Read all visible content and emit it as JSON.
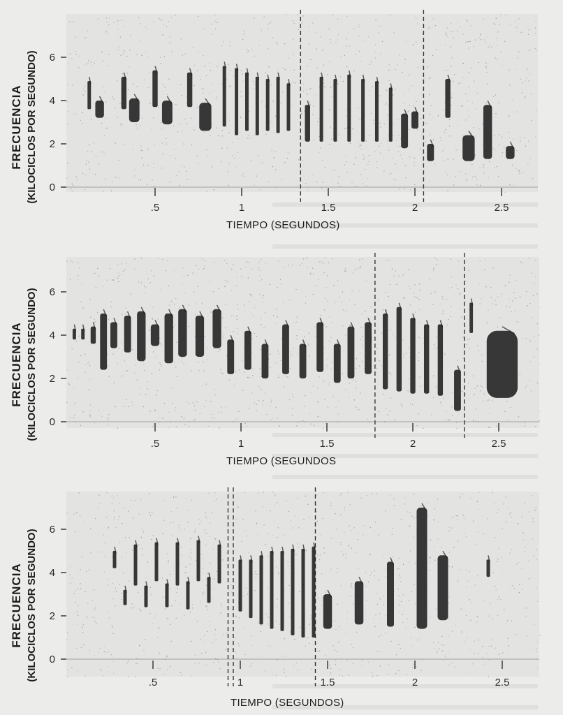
{
  "colors": {
    "ink": "#1f1f1f",
    "paper": "#ececea",
    "plot_bg": "#e3e3e1"
  },
  "chart_data": [
    {
      "type": "heatmap",
      "subtype": "sound-spectrogram",
      "title": "",
      "xlabel": "TIEMPO (SEGUNDOS)",
      "ylabel": "FRECUENCIA",
      "ylabel_units": "(KILOCICLOS POR SEGUNDO)",
      "x_ticks": [
        ".5",
        "1",
        "1.5",
        "2",
        "2.5"
      ],
      "y_ticks": [
        "0",
        "2",
        "4",
        "6"
      ],
      "xlim": [
        0.0,
        2.7
      ],
      "ylim": [
        0,
        7.5
      ],
      "dividers_x": [
        1.34,
        2.05
      ],
      "notes": [
        {
          "t": 0.12,
          "f": [
            3.6,
            4.9
          ],
          "w": 0.02
        },
        {
          "t": 0.18,
          "f": [
            3.2,
            4.0
          ],
          "w": 0.05
        },
        {
          "t": 0.32,
          "f": [
            3.6,
            5.1
          ],
          "w": 0.03
        },
        {
          "t": 0.38,
          "f": [
            3.0,
            4.1
          ],
          "w": 0.06
        },
        {
          "t": 0.5,
          "f": [
            3.7,
            5.4
          ],
          "w": 0.03
        },
        {
          "t": 0.57,
          "f": [
            2.9,
            4.0
          ],
          "w": 0.06
        },
        {
          "t": 0.7,
          "f": [
            3.7,
            5.3
          ],
          "w": 0.03
        },
        {
          "t": 0.79,
          "f": [
            2.6,
            3.9
          ],
          "w": 0.07
        },
        {
          "t": 0.9,
          "f": [
            2.8,
            5.6
          ],
          "w": 0.02
        },
        {
          "t": 0.97,
          "f": [
            2.4,
            5.5
          ],
          "w": 0.02
        },
        {
          "t": 1.03,
          "f": [
            2.6,
            5.3
          ],
          "w": 0.02
        },
        {
          "t": 1.09,
          "f": [
            2.4,
            5.1
          ],
          "w": 0.02
        },
        {
          "t": 1.15,
          "f": [
            2.6,
            5.0
          ],
          "w": 0.02
        },
        {
          "t": 1.21,
          "f": [
            2.5,
            5.1
          ],
          "w": 0.02
        },
        {
          "t": 1.27,
          "f": [
            2.6,
            4.8
          ],
          "w": 0.02
        },
        {
          "t": 1.38,
          "f": [
            2.1,
            3.8
          ],
          "w": 0.03
        },
        {
          "t": 1.46,
          "f": [
            2.1,
            5.1
          ],
          "w": 0.02
        },
        {
          "t": 1.54,
          "f": [
            2.1,
            5.0
          ],
          "w": 0.02
        },
        {
          "t": 1.62,
          "f": [
            2.1,
            5.2
          ],
          "w": 0.02
        },
        {
          "t": 1.7,
          "f": [
            2.1,
            5.0
          ],
          "w": 0.02
        },
        {
          "t": 1.78,
          "f": [
            2.1,
            4.9
          ],
          "w": 0.02
        },
        {
          "t": 1.86,
          "f": [
            2.1,
            4.6
          ],
          "w": 0.02
        },
        {
          "t": 1.94,
          "f": [
            1.8,
            3.4
          ],
          "w": 0.04
        },
        {
          "t": 2.0,
          "f": [
            2.7,
            3.5
          ],
          "w": 0.04
        },
        {
          "t": 2.09,
          "f": [
            1.2,
            2.0
          ],
          "w": 0.04
        },
        {
          "t": 2.19,
          "f": [
            3.2,
            5.0
          ],
          "w": 0.03
        },
        {
          "t": 2.31,
          "f": [
            1.2,
            2.4
          ],
          "w": 0.07
        },
        {
          "t": 2.42,
          "f": [
            1.3,
            3.8
          ],
          "w": 0.05
        },
        {
          "t": 2.55,
          "f": [
            1.3,
            1.9
          ],
          "w": 0.05
        }
      ]
    },
    {
      "type": "heatmap",
      "subtype": "sound-spectrogram",
      "title": "",
      "xlabel": "TIEMPO (SEGUNDOS",
      "ylabel": "FRECUENCIA",
      "ylabel_units": "(KILOCICLOS POR SEGUNDO)",
      "x_ticks": [
        ".5",
        "1",
        "1.5",
        "2",
        "2.5"
      ],
      "y_ticks": [
        "0",
        "2",
        "4",
        "6"
      ],
      "xlim": [
        0.0,
        2.7
      ],
      "ylim": [
        0,
        7.5
      ],
      "dividers_x": [
        1.78,
        2.3
      ],
      "notes": [
        {
          "t": 0.03,
          "f": [
            3.8,
            4.3
          ],
          "w": 0.02
        },
        {
          "t": 0.08,
          "f": [
            3.8,
            4.3
          ],
          "w": 0.02
        },
        {
          "t": 0.14,
          "f": [
            3.6,
            4.4
          ],
          "w": 0.03
        },
        {
          "t": 0.2,
          "f": [
            2.4,
            5.0
          ],
          "w": 0.04
        },
        {
          "t": 0.26,
          "f": [
            3.4,
            4.6
          ],
          "w": 0.04
        },
        {
          "t": 0.34,
          "f": [
            3.2,
            4.9
          ],
          "w": 0.04
        },
        {
          "t": 0.42,
          "f": [
            2.8,
            5.1
          ],
          "w": 0.05
        },
        {
          "t": 0.5,
          "f": [
            3.5,
            4.5
          ],
          "w": 0.05
        },
        {
          "t": 0.58,
          "f": [
            2.7,
            5.0
          ],
          "w": 0.05
        },
        {
          "t": 0.66,
          "f": [
            3.0,
            5.2
          ],
          "w": 0.05
        },
        {
          "t": 0.76,
          "f": [
            3.0,
            4.9
          ],
          "w": 0.05
        },
        {
          "t": 0.86,
          "f": [
            3.4,
            5.2
          ],
          "w": 0.05
        },
        {
          "t": 0.94,
          "f": [
            2.2,
            3.8
          ],
          "w": 0.04
        },
        {
          "t": 1.04,
          "f": [
            2.4,
            4.2
          ],
          "w": 0.04
        },
        {
          "t": 1.14,
          "f": [
            2.0,
            3.6
          ],
          "w": 0.04
        },
        {
          "t": 1.26,
          "f": [
            2.2,
            4.5
          ],
          "w": 0.04
        },
        {
          "t": 1.36,
          "f": [
            2.0,
            3.6
          ],
          "w": 0.04
        },
        {
          "t": 1.46,
          "f": [
            2.3,
            4.6
          ],
          "w": 0.04
        },
        {
          "t": 1.56,
          "f": [
            1.8,
            3.6
          ],
          "w": 0.04
        },
        {
          "t": 1.64,
          "f": [
            2.0,
            4.4
          ],
          "w": 0.04
        },
        {
          "t": 1.74,
          "f": [
            2.2,
            4.6
          ],
          "w": 0.04
        },
        {
          "t": 1.84,
          "f": [
            1.5,
            5.0
          ],
          "w": 0.03
        },
        {
          "t": 1.92,
          "f": [
            1.4,
            5.3
          ],
          "w": 0.03
        },
        {
          "t": 2.0,
          "f": [
            1.3,
            4.8
          ],
          "w": 0.03
        },
        {
          "t": 2.08,
          "f": [
            1.3,
            4.5
          ],
          "w": 0.03
        },
        {
          "t": 2.16,
          "f": [
            1.2,
            4.5
          ],
          "w": 0.03
        },
        {
          "t": 2.26,
          "f": [
            0.5,
            2.4
          ],
          "w": 0.04
        },
        {
          "t": 2.34,
          "f": [
            4.1,
            5.5
          ],
          "w": 0.02
        },
        {
          "t": 2.52,
          "f": [
            1.1,
            4.2
          ],
          "w": 0.18
        }
      ]
    },
    {
      "type": "heatmap",
      "subtype": "sound-spectrogram",
      "title": "",
      "xlabel": "TIEMPO (SEGUNDOS)",
      "ylabel": "FRECUENCIA",
      "ylabel_units": "(KILOCICLOS POR SEGUNDO)",
      "x_ticks": [
        ".5",
        "1",
        "1.5",
        "2",
        "2.5"
      ],
      "y_ticks": [
        "0",
        "2",
        "4",
        "6"
      ],
      "xlim": [
        0.0,
        2.7
      ],
      "ylim": [
        0,
        7.5
      ],
      "dividers_x": [
        0.93,
        0.96,
        1.43
      ],
      "notes": [
        {
          "t": 0.28,
          "f": [
            4.2,
            5.0
          ],
          "w": 0.02
        },
        {
          "t": 0.34,
          "f": [
            2.5,
            3.2
          ],
          "w": 0.02
        },
        {
          "t": 0.4,
          "f": [
            3.4,
            5.3
          ],
          "w": 0.02
        },
        {
          "t": 0.46,
          "f": [
            2.4,
            3.4
          ],
          "w": 0.02
        },
        {
          "t": 0.52,
          "f": [
            3.6,
            5.4
          ],
          "w": 0.02
        },
        {
          "t": 0.58,
          "f": [
            2.4,
            3.5
          ],
          "w": 0.02
        },
        {
          "t": 0.64,
          "f": [
            3.4,
            5.4
          ],
          "w": 0.02
        },
        {
          "t": 0.7,
          "f": [
            2.3,
            3.6
          ],
          "w": 0.02
        },
        {
          "t": 0.76,
          "f": [
            3.6,
            5.5
          ],
          "w": 0.02
        },
        {
          "t": 0.82,
          "f": [
            2.6,
            3.8
          ],
          "w": 0.02
        },
        {
          "t": 0.88,
          "f": [
            3.5,
            5.3
          ],
          "w": 0.02
        },
        {
          "t": 1.0,
          "f": [
            2.2,
            4.6
          ],
          "w": 0.02
        },
        {
          "t": 1.06,
          "f": [
            1.9,
            4.6
          ],
          "w": 0.02
        },
        {
          "t": 1.12,
          "f": [
            1.6,
            4.8
          ],
          "w": 0.02
        },
        {
          "t": 1.18,
          "f": [
            1.4,
            5.0
          ],
          "w": 0.02
        },
        {
          "t": 1.24,
          "f": [
            1.3,
            5.0
          ],
          "w": 0.02
        },
        {
          "t": 1.3,
          "f": [
            1.1,
            5.1
          ],
          "w": 0.02
        },
        {
          "t": 1.36,
          "f": [
            1.0,
            5.1
          ],
          "w": 0.02
        },
        {
          "t": 1.42,
          "f": [
            1.0,
            5.2
          ],
          "w": 0.02
        },
        {
          "t": 1.5,
          "f": [
            1.4,
            3.0
          ],
          "w": 0.05
        },
        {
          "t": 1.68,
          "f": [
            1.6,
            3.6
          ],
          "w": 0.05
        },
        {
          "t": 1.86,
          "f": [
            1.5,
            4.5
          ],
          "w": 0.04
        },
        {
          "t": 2.04,
          "f": [
            1.4,
            7.0
          ],
          "w": 0.06
        },
        {
          "t": 2.16,
          "f": [
            1.8,
            4.8
          ],
          "w": 0.06
        },
        {
          "t": 2.42,
          "f": [
            3.8,
            4.6
          ],
          "w": 0.02
        }
      ]
    }
  ]
}
